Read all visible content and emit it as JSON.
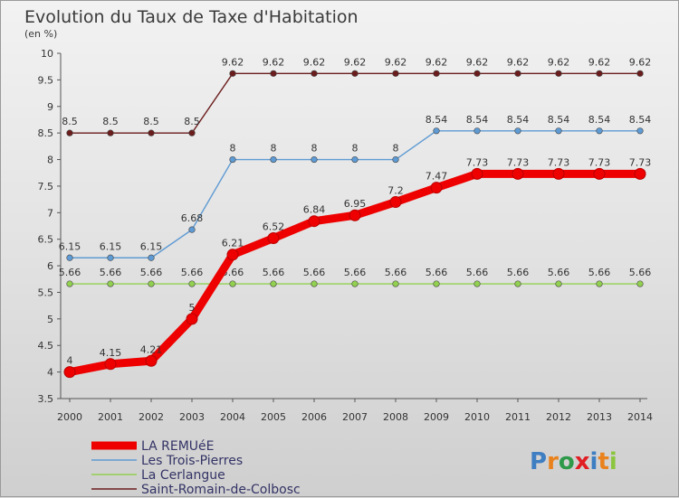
{
  "header": {
    "title": "Evolution du Taux de Taxe d'Habitation",
    "subtitle": "(en %)"
  },
  "logo": {
    "text": "Proxiti",
    "letter_colors": [
      "#3e7ec2",
      "#e9821d",
      "#2e9a49",
      "#e01e24",
      "#3e7ec2",
      "#e9821d",
      "#8cc63f"
    ]
  },
  "chart_data": {
    "type": "line",
    "title": "Evolution du Taux de Taxe d'Habitation",
    "subtitle": "(en %)",
    "xlabel": "",
    "ylabel": "",
    "x": [
      "2000",
      "2001",
      "2002",
      "2003",
      "2004",
      "2005",
      "2006",
      "2007",
      "2008",
      "2009",
      "2010",
      "2011",
      "2012",
      "2013",
      "2014"
    ],
    "ylim": [
      3.5,
      10
    ],
    "yticks": [
      "3.5",
      "4",
      "4.5",
      "5",
      "5.5",
      "6",
      "6.5",
      "7",
      "7.5",
      "8",
      "8.5",
      "9",
      "9.5",
      "10"
    ],
    "grid": false,
    "legend_position": "bottom-left",
    "series": [
      {
        "name": "LA REMUéE",
        "color": "#ee0000",
        "values": [
          4,
          4.15,
          4.21,
          5,
          6.21,
          6.52,
          6.84,
          6.95,
          7.2,
          7.47,
          7.73,
          7.73,
          7.73,
          7.73,
          7.73
        ],
        "labels": [
          "4",
          "4.15",
          "4.21",
          "5",
          "6.21",
          "6.52",
          "6.84",
          "6.95",
          "7.2",
          "7.47",
          "7.73",
          "7.73",
          "7.73",
          "7.73",
          "7.73"
        ]
      },
      {
        "name": "Les Trois-Pierres",
        "color": "#5e9ad3",
        "values": [
          6.15,
          6.15,
          6.15,
          6.68,
          8,
          8,
          8,
          8,
          8,
          8.54,
          8.54,
          8.54,
          8.54,
          8.54,
          8.54
        ],
        "labels": [
          "6.15",
          "6.15",
          "6.15",
          "6.68",
          "8",
          "8",
          "8",
          "8",
          "8",
          "8.54",
          "8.54",
          "8.54",
          "8.54",
          "8.54",
          "8.54"
        ]
      },
      {
        "name": "La Cerlangue",
        "color": "#92d050",
        "values": [
          5.66,
          5.66,
          5.66,
          5.66,
          5.66,
          5.66,
          5.66,
          5.66,
          5.66,
          5.66,
          5.66,
          5.66,
          5.66,
          5.66,
          5.66
        ],
        "labels": [
          "5.66",
          "5.66",
          "5.66",
          "5.66",
          "5.66",
          "5.66",
          "5.66",
          "5.66",
          "5.66",
          "5.66",
          "5.66",
          "5.66",
          "5.66",
          "5.66",
          "5.66"
        ]
      },
      {
        "name": "Saint-Romain-de-Colbosc",
        "color": "#6b1c1c",
        "values": [
          8.5,
          8.5,
          8.5,
          8.5,
          9.62,
          9.62,
          9.62,
          9.62,
          9.62,
          9.62,
          9.62,
          9.62,
          9.62,
          9.62,
          9.62
        ],
        "labels": [
          "8.5",
          "8.5",
          "8.5",
          "8.5",
          "9.62",
          "9.62",
          "9.62",
          "9.62",
          "9.62",
          "9.62",
          "9.62",
          "9.62",
          "9.62",
          "9.62",
          "9.62"
        ]
      }
    ]
  }
}
